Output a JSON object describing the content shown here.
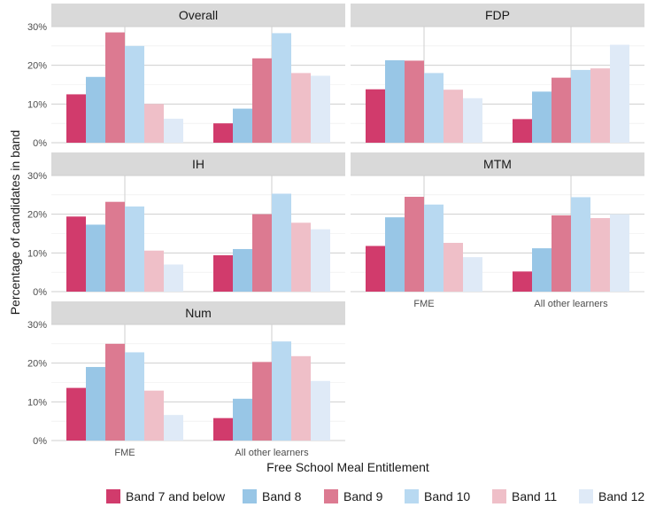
{
  "chart_data": {
    "type": "bar",
    "layout": "facet-grid",
    "xlabel": "Free School Meal Entitlement",
    "ylabel": "Percentage of candidates in band",
    "categories": [
      "FME",
      "All other learners"
    ],
    "ylim": [
      0,
      30
    ],
    "yticks": [
      "0%",
      "10%",
      "20%",
      "30%"
    ],
    "grid": true,
    "legend_position": "bottom",
    "series_names": [
      "Band 7 and below",
      "Band 8",
      "Band 9",
      "Band 10",
      "Band 11",
      "Band 12"
    ],
    "series_colors": [
      "#d13b6c",
      "#98c6e6",
      "#dc7a91",
      "#b8d9f1",
      "#efbfc8",
      "#dfeaf7"
    ],
    "facets": [
      {
        "title": "Overall",
        "values": [
          [
            12.5,
            17,
            28.5,
            25,
            10,
            6.2
          ],
          [
            5,
            8.8,
            21.8,
            28.3,
            18,
            17.3
          ]
        ]
      },
      {
        "title": "FDP",
        "values": [
          [
            13.8,
            21.3,
            21.2,
            18,
            13.7,
            11.5
          ],
          [
            6.1,
            13.2,
            16.8,
            18.8,
            19.2,
            25.3
          ]
        ]
      },
      {
        "title": "IH",
        "values": [
          [
            19.4,
            17.3,
            23.2,
            22,
            10.6,
            7
          ],
          [
            9.4,
            11,
            20,
            25.3,
            17.8,
            16.1
          ]
        ]
      },
      {
        "title": "MTM",
        "values": [
          [
            11.8,
            19.2,
            24.5,
            22.5,
            12.6,
            8.9
          ],
          [
            5.2,
            11.2,
            19.7,
            24.4,
            19,
            20
          ]
        ]
      },
      {
        "title": "Num",
        "values": [
          [
            13.6,
            19,
            25,
            22.8,
            12.9,
            6.6
          ],
          [
            5.8,
            10.8,
            20.3,
            25.6,
            21.8,
            15.4
          ]
        ]
      }
    ]
  }
}
